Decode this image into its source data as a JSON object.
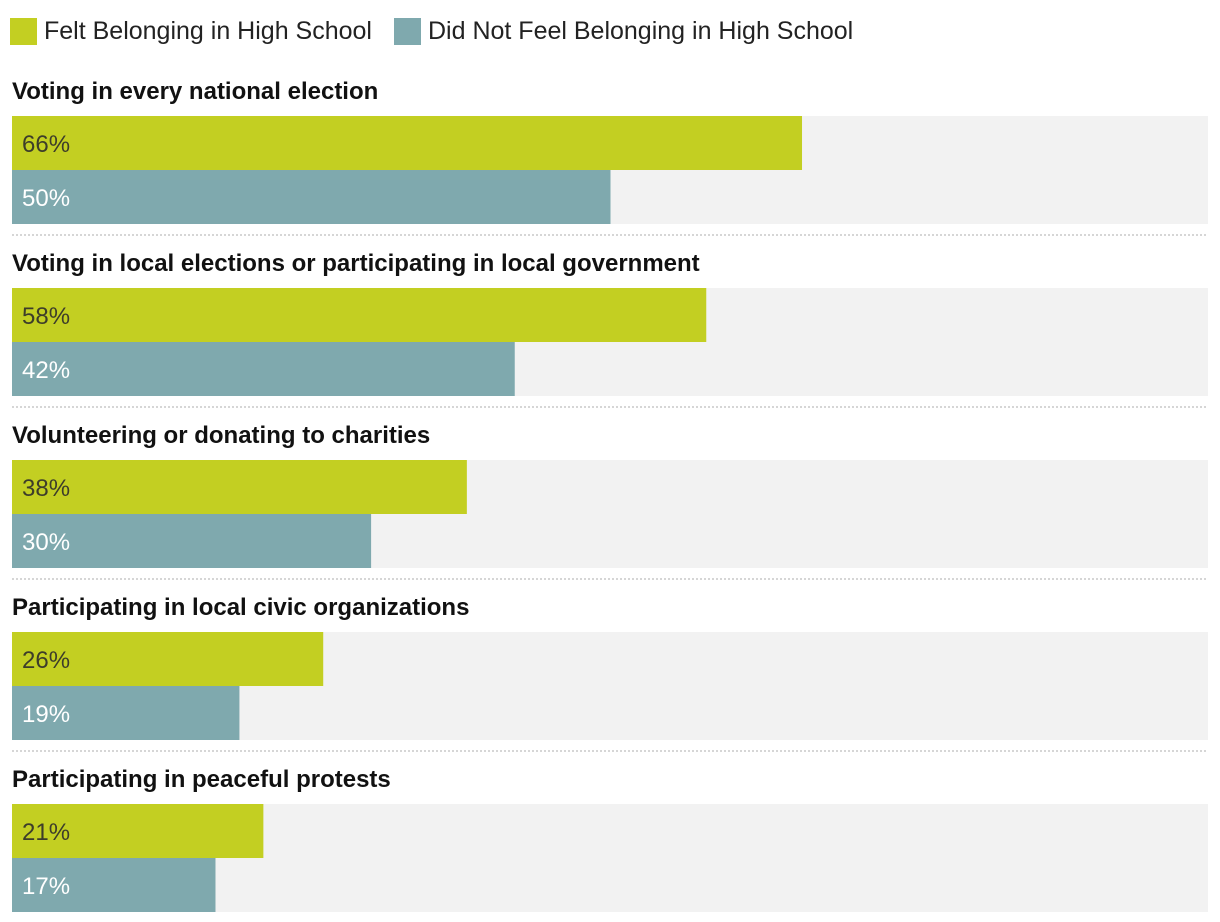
{
  "chart_data": {
    "type": "bar",
    "orientation": "horizontal",
    "xlim": [
      0,
      100
    ],
    "legend_position": "top-left",
    "categories": [
      "Voting in every national election",
      "Voting in local elections or participating in local government",
      "Volunteering or donating to charities",
      "Participating in local civic organizations",
      "Participating in peaceful protests"
    ],
    "series": [
      {
        "name": "Felt Belonging in High School",
        "color": "#c3cf22",
        "label_color": "#3d3d2a",
        "values": [
          66,
          58,
          38,
          26,
          21
        ],
        "labels": [
          "66%",
          "58%",
          "38%",
          "26%",
          "21%"
        ]
      },
      {
        "name": "Did Not Feel Belonging in High School",
        "color": "#7fa9ae",
        "label_color": "#ffffff",
        "values": [
          50,
          42,
          30,
          19,
          17
        ],
        "labels": [
          "50%",
          "42%",
          "30%",
          "19%",
          "17%"
        ]
      }
    ],
    "track_color": "#f2f2f2",
    "divider_color": "#c8c8c8"
  }
}
